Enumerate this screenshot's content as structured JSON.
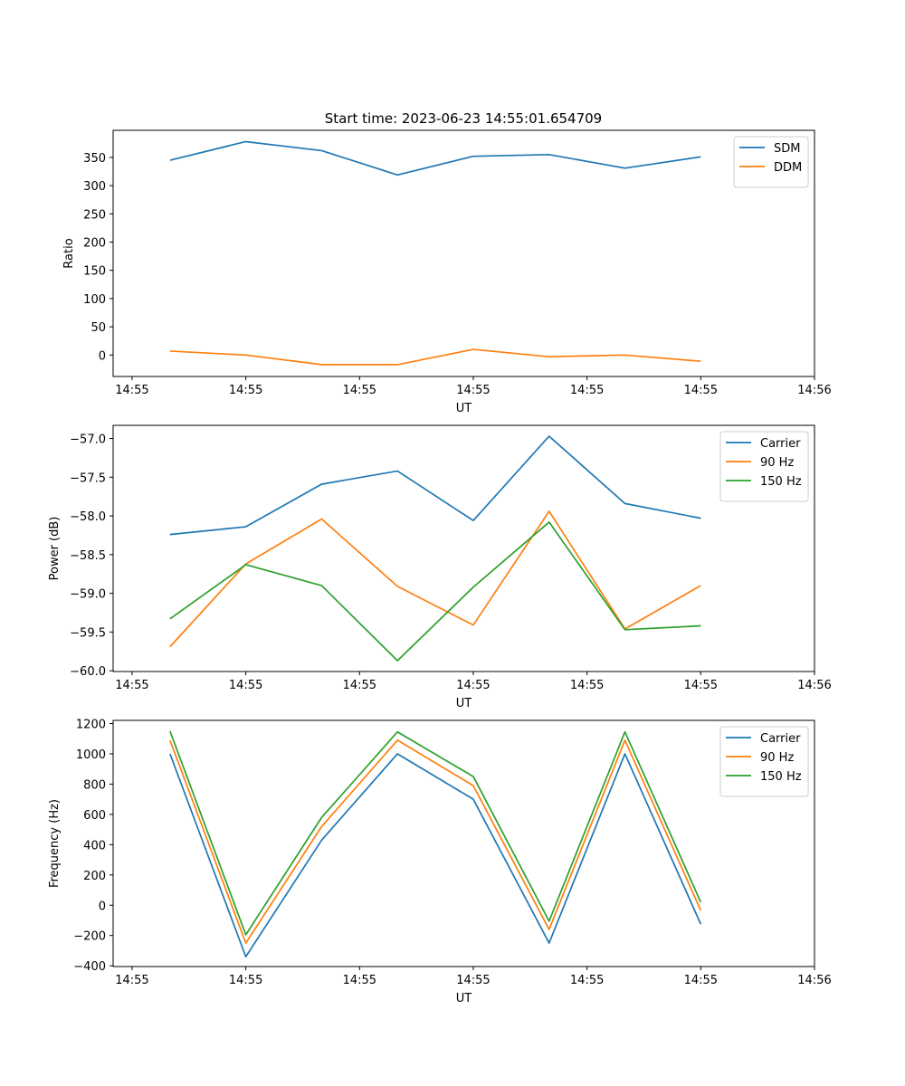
{
  "figure": {
    "title": "Start time: 2023-06-23 14:55:01.654709"
  },
  "chart_data": [
    {
      "type": "line",
      "xlabel": "UT",
      "ylabel": "Ratio",
      "xtick_labels": [
        "14:55",
        "14:55",
        "14:55",
        "14:55",
        "14:55",
        "14:55",
        "14:56"
      ],
      "yticks": [
        0,
        50,
        100,
        150,
        200,
        250,
        300,
        350
      ],
      "ylim": [
        -38,
        398
      ],
      "legend": "upper right",
      "series": [
        {
          "name": "SDM",
          "color": "#1f77b4",
          "values": [
            345,
            378,
            362,
            319,
            352,
            355,
            331,
            351
          ]
        },
        {
          "name": "DDM",
          "color": "#ff7f0e",
          "values": [
            7,
            0,
            -17,
            -17,
            10,
            -3,
            0,
            -11
          ]
        }
      ]
    },
    {
      "type": "line",
      "xlabel": "UT",
      "ylabel": "Power (dB)",
      "xtick_labels": [
        "14:55",
        "14:55",
        "14:55",
        "14:55",
        "14:55",
        "14:55",
        "14:56"
      ],
      "yticks": [
        -60.0,
        -59.5,
        -59.0,
        -58.5,
        -58.0,
        -57.5,
        -57.0
      ],
      "ytick_labels": [
        "−60.0",
        "−59.5",
        "−59.0",
        "−58.5",
        "−58.0",
        "−57.5",
        "−57.0"
      ],
      "ylim": [
        -60.01,
        -56.83
      ],
      "legend": "upper right",
      "series": [
        {
          "name": "Carrier",
          "color": "#1f77b4",
          "values": [
            -58.24,
            -58.14,
            -57.59,
            -57.42,
            -58.06,
            -56.97,
            -57.84,
            -58.03
          ]
        },
        {
          "name": "90 Hz",
          "color": "#ff7f0e",
          "values": [
            -59.69,
            -58.62,
            -58.04,
            -58.91,
            -59.41,
            -57.94,
            -59.46,
            -58.9
          ]
        },
        {
          "name": "150 Hz",
          "color": "#2ca02c",
          "values": [
            -59.33,
            -58.63,
            -58.9,
            -59.87,
            -58.92,
            -58.08,
            -59.47,
            -59.42
          ]
        }
      ]
    },
    {
      "type": "line",
      "xlabel": "UT",
      "ylabel": "Frequency (Hz)",
      "xtick_labels": [
        "14:55",
        "14:55",
        "14:55",
        "14:55",
        "14:55",
        "14:55",
        "14:56"
      ],
      "yticks": [
        -400,
        -200,
        0,
        200,
        400,
        600,
        800,
        1000,
        1200
      ],
      "ytick_labels": [
        "−400",
        "−200",
        "0",
        "200",
        "400",
        "600",
        "800",
        "1000",
        "1200"
      ],
      "ylim": [
        -405,
        1221
      ],
      "legend": "upper right",
      "series": [
        {
          "name": "Carrier",
          "color": "#1f77b4",
          "values": [
            1000,
            -340,
            430,
            1000,
            700,
            -250,
            1000,
            -125
          ]
        },
        {
          "name": "90 Hz",
          "color": "#ff7f0e",
          "values": [
            1090,
            -250,
            520,
            1090,
            790,
            -160,
            1090,
            -35
          ]
        },
        {
          "name": "150 Hz",
          "color": "#2ca02c",
          "values": [
            1150,
            -195,
            580,
            1145,
            850,
            -105,
            1145,
            20
          ]
        }
      ]
    }
  ]
}
